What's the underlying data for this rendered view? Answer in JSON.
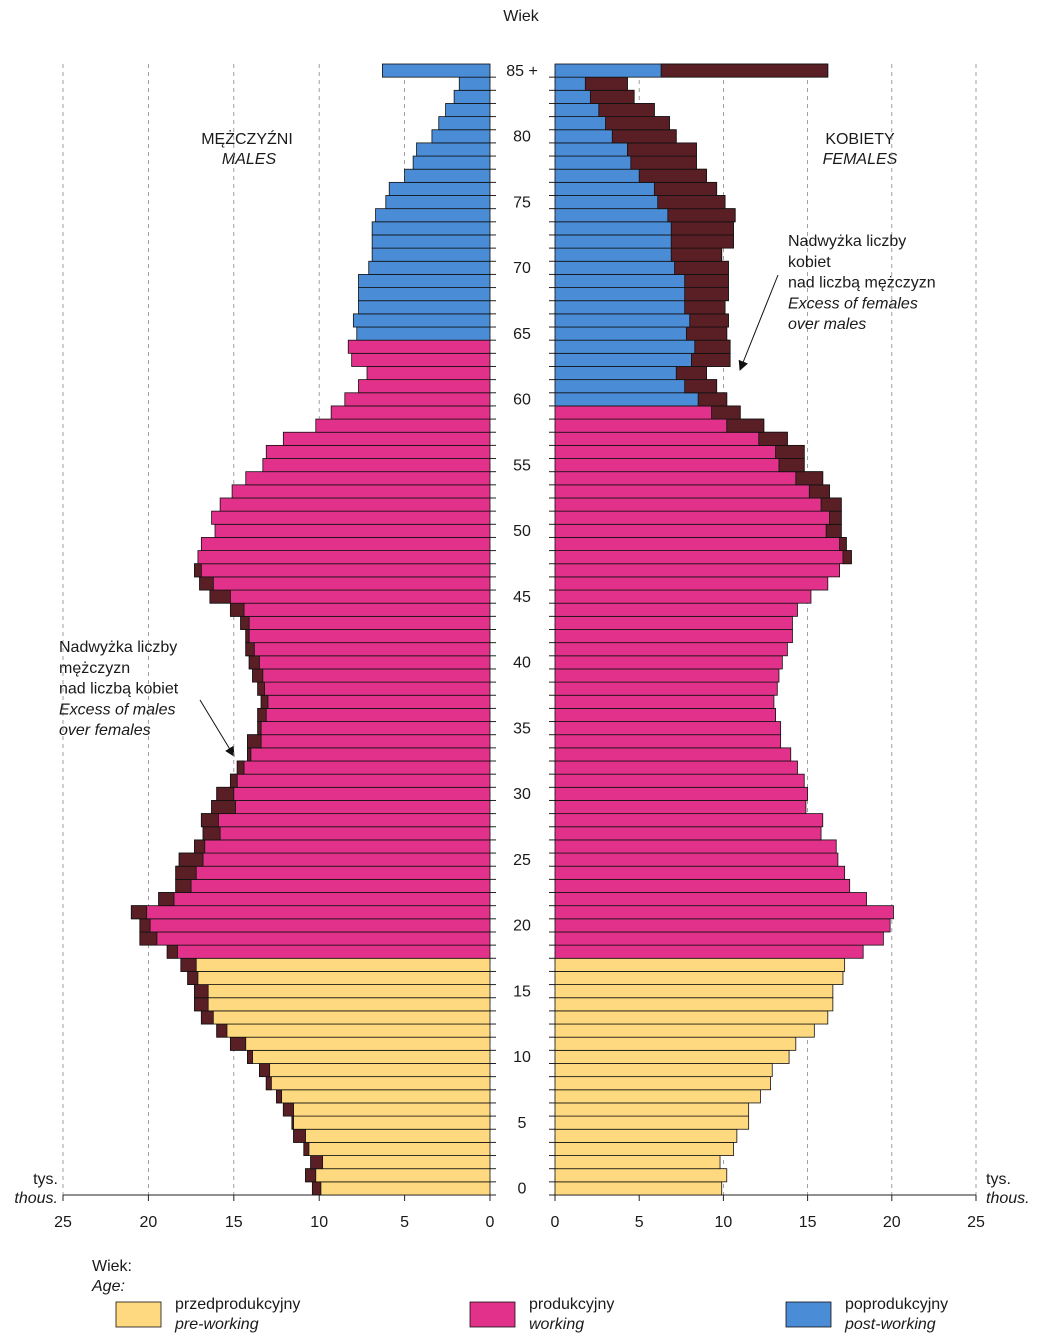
{
  "chart_data": {
    "type": "pyramid",
    "title": "Wiek",
    "categories": [
      "0",
      null,
      null,
      null,
      null,
      "5",
      null,
      null,
      null,
      null,
      "10",
      null,
      null,
      null,
      null,
      "15",
      null,
      null,
      null,
      null,
      "20",
      null,
      null,
      null,
      null,
      "25",
      null,
      null,
      null,
      null,
      "30",
      null,
      null,
      null,
      null,
      "35",
      null,
      null,
      null,
      null,
      "40",
      null,
      null,
      null,
      null,
      "45",
      null,
      null,
      null,
      null,
      "50",
      null,
      null,
      null,
      null,
      "55",
      null,
      null,
      null,
      null,
      "60",
      null,
      null,
      null,
      null,
      "65",
      null,
      null,
      null,
      null,
      "70",
      null,
      null,
      null,
      null,
      "75",
      null,
      null,
      null,
      null,
      "80",
      null,
      null,
      null,
      null,
      "85 +"
    ],
    "series": [
      {
        "name": "MĘŻCZYŹNI",
        "name_en": "MALES",
        "side": "left",
        "group_start": [
          0,
          18,
          65
        ],
        "values": [
          10.4,
          10.8,
          10.5,
          10.9,
          11.5,
          11.6,
          12.1,
          12.5,
          13.1,
          13.5,
          14.2,
          15.2,
          16.0,
          16.9,
          17.3,
          17.3,
          17.7,
          18.1,
          18.9,
          20.5,
          20.5,
          21.0,
          19.4,
          18.4,
          18.4,
          18.2,
          17.3,
          16.8,
          16.9,
          16.3,
          16.0,
          15.2,
          14.8,
          14.2,
          14.2,
          13.6,
          13.6,
          13.4,
          13.6,
          13.9,
          14.1,
          14.3,
          14.3,
          14.6,
          15.2,
          16.4,
          17.0,
          17.3,
          17.1,
          16.9,
          16.1,
          16.3,
          15.8,
          15.1,
          14.3,
          13.3,
          13.1,
          12.1,
          10.2,
          9.3,
          8.5,
          7.7,
          7.2,
          8.1,
          8.3,
          7.8,
          8.0,
          7.7,
          7.7,
          7.7,
          7.1,
          6.9,
          6.9,
          6.9,
          6.7,
          6.1,
          5.9,
          5.0,
          4.5,
          4.3,
          3.4,
          3.0,
          2.6,
          2.1,
          1.8,
          6.3
        ]
      },
      {
        "name": "KOBIETY",
        "name_en": "FEMALES",
        "side": "right",
        "group_start": [
          0,
          18,
          60
        ],
        "values": [
          9.9,
          10.2,
          9.8,
          10.6,
          10.8,
          11.5,
          11.5,
          12.2,
          12.8,
          12.9,
          13.9,
          14.3,
          15.4,
          16.2,
          16.5,
          16.5,
          17.1,
          17.2,
          18.3,
          19.5,
          19.9,
          20.1,
          18.5,
          17.5,
          17.2,
          16.8,
          16.7,
          15.8,
          15.9,
          14.9,
          15.0,
          14.8,
          14.4,
          14.0,
          13.4,
          13.4,
          13.1,
          13.0,
          13.2,
          13.3,
          13.5,
          13.8,
          14.1,
          14.1,
          14.4,
          15.2,
          16.2,
          16.9,
          17.6,
          17.3,
          17.0,
          17.0,
          17.0,
          16.3,
          15.9,
          14.8,
          14.8,
          13.8,
          12.4,
          11.0,
          10.2,
          9.6,
          9.0,
          10.4,
          10.4,
          10.2,
          10.3,
          10.1,
          10.3,
          10.3,
          10.3,
          9.9,
          10.6,
          10.6,
          10.7,
          10.1,
          9.6,
          9.0,
          8.4,
          8.4,
          7.2,
          6.8,
          5.9,
          4.7,
          4.3,
          16.2
        ]
      }
    ],
    "groups": [
      {
        "name": "przedprodukcyjny",
        "name_en": "pre-working",
        "color": "#ffd97f"
      },
      {
        "name": "produkcyjny",
        "name_en": "working",
        "color": "#e2318a"
      },
      {
        "name": "poprodukcyjny",
        "name_en": "post-working",
        "color": "#4a8cd6"
      }
    ],
    "excess_color": "#5a1f24",
    "legend_title": "Wiek:",
    "legend_title_en": "Age:",
    "unit": "tys.",
    "unit_en": "thous.",
    "xlim": [
      0,
      25
    ],
    "xticks": [
      0,
      5,
      10,
      15,
      20,
      25
    ],
    "grid": true,
    "annotations": [
      {
        "text": [
          "Nadwyżka liczby",
          "kobiet",
          "nad liczbą mężczyzn"
        ],
        "text_en": [
          "Excess of females",
          "over males"
        ]
      },
      {
        "text": [
          "Nadwyżka liczby",
          "mężczyzn",
          "nad liczbą kobiet"
        ],
        "text_en": [
          "Excess of males",
          "over females"
        ]
      }
    ]
  }
}
